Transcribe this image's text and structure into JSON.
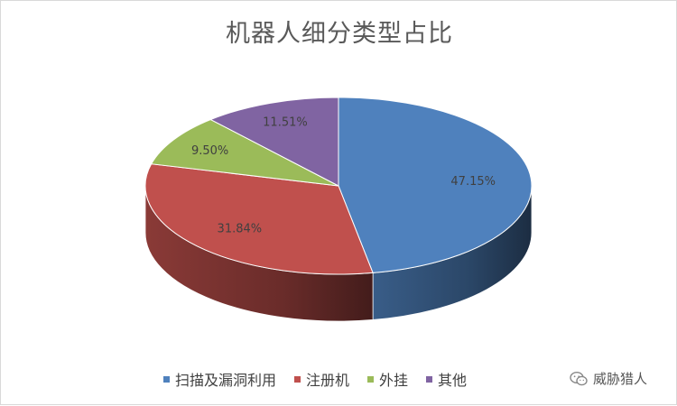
{
  "chart_data": {
    "type": "pie",
    "title": "机器人细分类型占比",
    "series": [
      {
        "name": "扫描及漏洞利用",
        "value": 47.15,
        "label": "47.15%",
        "color": "#4F81BD"
      },
      {
        "name": "注册机",
        "value": 31.84,
        "label": "31.84%",
        "color": "#C0504D"
      },
      {
        "name": "外挂",
        "value": 9.5,
        "label": "9.50%",
        "color": "#9BBB59"
      },
      {
        "name": "其他",
        "value": 11.51,
        "label": "11.51%",
        "color": "#8064A2"
      }
    ],
    "legend_position": "bottom",
    "style": "3d"
  },
  "watermark": {
    "text": "威胁猎人",
    "icon": "wechat-icon"
  }
}
